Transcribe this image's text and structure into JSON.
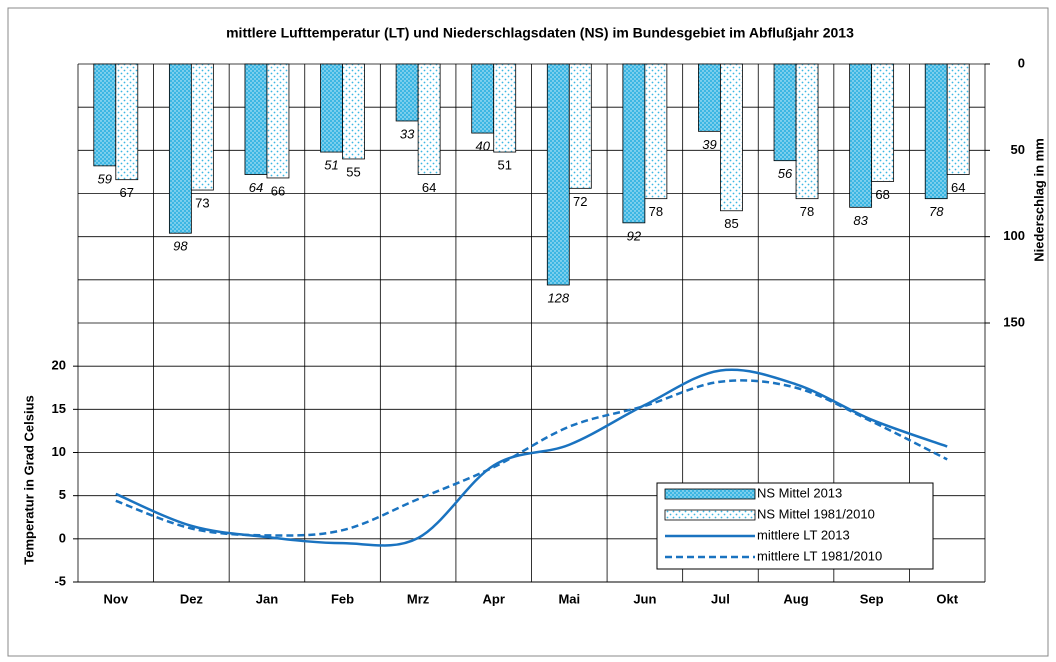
{
  "chart_data": {
    "type": "bar-line",
    "title": "mittlere Lufttemperatur (LT) und Niederschlagsdaten (NS) im Bundesgebiet im Abflußjahr 2013",
    "ylabel": "Temperatur in Grad Celsius",
    "y2label": "Niederschlag in mm",
    "categories": [
      "Nov",
      "Dez",
      "Jan",
      "Feb",
      "Mrz",
      "Apr",
      "Mai",
      "Jun",
      "Jul",
      "Aug",
      "Sep",
      "Okt"
    ],
    "ylim": [
      -5,
      55
    ],
    "yticks": [
      -5,
      0,
      5,
      10,
      15,
      20
    ],
    "y2lim": [
      300,
      0
    ],
    "y2ticks": [
      0,
      50,
      100,
      150
    ],
    "y2_grid_ticks": [
      25,
      75,
      125
    ],
    "grid": true,
    "legend": "lower right",
    "series": [
      {
        "name": "NS Mittel 2013",
        "type": "bar",
        "axis": "y2",
        "color": "#3cb6e3",
        "pattern": "dots-dense",
        "values": [
          59,
          98,
          64,
          51,
          33,
          40,
          128,
          92,
          39,
          56,
          83,
          78
        ]
      },
      {
        "name": "NS Mittel 1981/2010",
        "type": "bar",
        "axis": "y2",
        "color": "#3cb6e3",
        "pattern": "dots-sparse",
        "values": [
          67,
          73,
          66,
          55,
          64,
          51,
          72,
          78,
          85,
          78,
          68,
          64
        ]
      },
      {
        "name": "mittlere LT 2013",
        "type": "line",
        "axis": "y",
        "color": "#1a73c0",
        "dash": false,
        "values": [
          5.2,
          1.5,
          0.2,
          -0.5,
          0.1,
          8.5,
          10.9,
          15.5,
          19.5,
          17.9,
          13.8,
          10.7
        ]
      },
      {
        "name": "mittlere LT 1981/2010",
        "type": "line",
        "axis": "y",
        "color": "#1a73c0",
        "dash": true,
        "values": [
          4.4,
          1.2,
          0.4,
          1.0,
          4.6,
          8.3,
          13.0,
          15.4,
          18.2,
          17.5,
          13.6,
          9.2
        ]
      }
    ]
  }
}
